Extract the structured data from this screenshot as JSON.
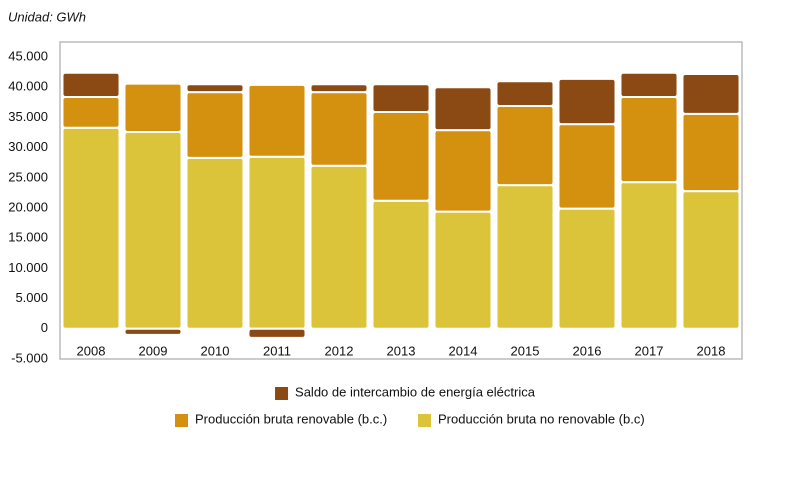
{
  "chart_data": {
    "type": "stacked_bar",
    "subtitle": "Unidad: GWh",
    "categories": [
      "2008",
      "2009",
      "2010",
      "2011",
      "2012",
      "2013",
      "2014",
      "2015",
      "2016",
      "2017",
      "2018"
    ],
    "series": [
      {
        "name": "Producción bruta no renovable (b.c)",
        "color": "#dcc43a",
        "values": [
          33300,
          32600,
          28300,
          28500,
          27000,
          21200,
          19400,
          23800,
          19900,
          24300,
          22800
        ]
      },
      {
        "name": "Producción bruta renovable (b.c.)",
        "color": "#d4900f",
        "values": [
          5100,
          8000,
          10900,
          11900,
          12200,
          14700,
          13500,
          13100,
          14000,
          14100,
          12800
        ]
      },
      {
        "name": "Saldo de intercambio de energía eléctrica",
        "color": "#8b4a14",
        "values": [
          4000,
          -1000,
          1300,
          -1500,
          1300,
          4600,
          7100,
          4100,
          7500,
          4000,
          6600
        ]
      }
    ],
    "ylim": [
      -5000,
      47500
    ],
    "yticks": [
      {
        "value": -5000,
        "label": "-5.000"
      },
      0,
      {
        "value": 5000,
        "label": "5.000"
      },
      {
        "value": 10000,
        "label": "10.000"
      },
      {
        "value": 15000,
        "label": "15.000"
      },
      {
        "value": 20000,
        "label": "20.000"
      },
      {
        "value": 25000,
        "label": "25.000"
      },
      {
        "value": 30000,
        "label": "30.000"
      },
      {
        "value": 35000,
        "label": "35.000"
      },
      {
        "value": 40000,
        "label": "40.000"
      },
      {
        "value": 45000,
        "label": "45.000"
      }
    ]
  }
}
